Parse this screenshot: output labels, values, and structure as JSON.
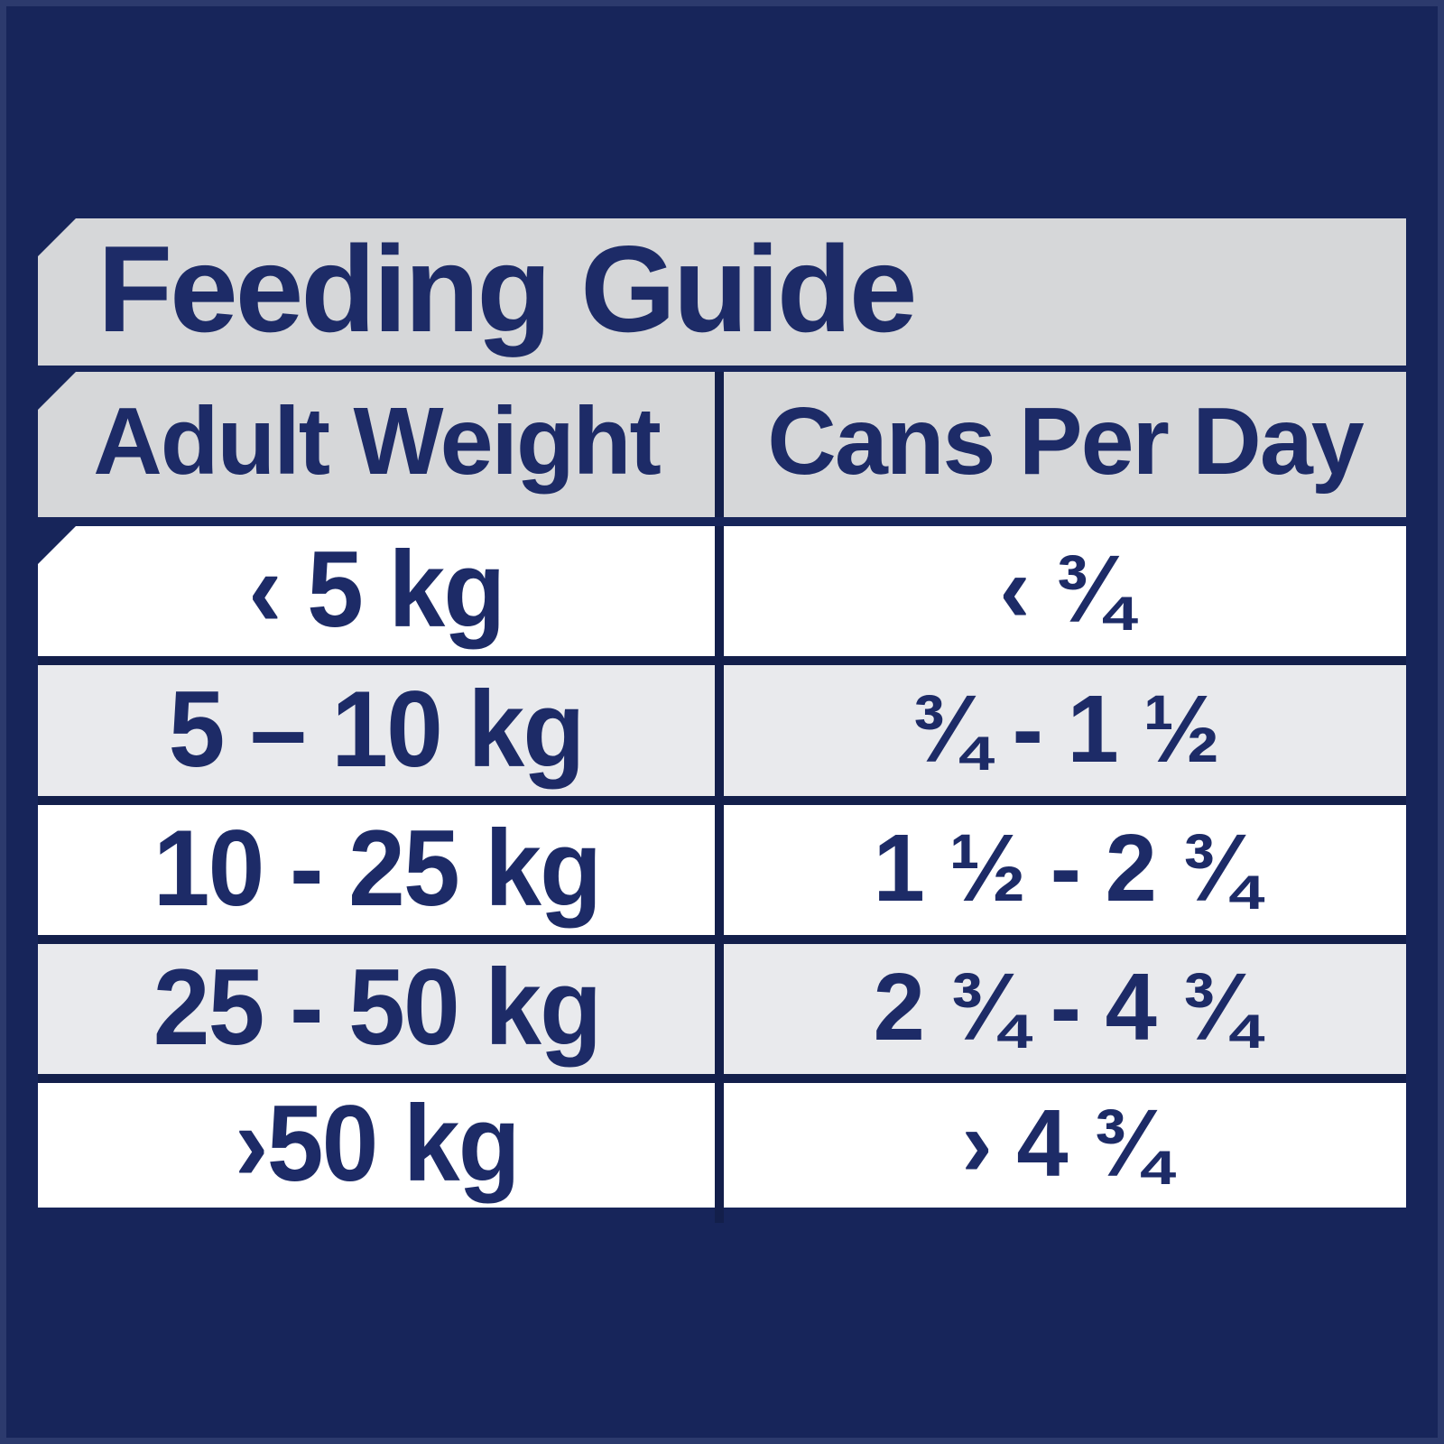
{
  "chart_data": {
    "type": "table",
    "title": "Feeding Guide",
    "columns": [
      "Adult Weight",
      "Cans Per Day"
    ],
    "rows": [
      [
        "‹ 5 kg",
        "‹ ¾"
      ],
      [
        "5 – 10 kg",
        "¾ - 1 ½"
      ],
      [
        "10 - 25 kg",
        "1 ½ - 2 ¾"
      ],
      [
        "25 - 50 kg",
        "2 ¾ - 4 ¾"
      ],
      [
        "›50 kg",
        "› 4 ¾"
      ]
    ],
    "layout_hints": {
      "row_shading": [
        "white",
        "gray",
        "white",
        "gray",
        "white"
      ],
      "title_alignment": "left",
      "cell_alignment": "center",
      "corner_style": "notched top-left on title, header and first row"
    }
  },
  "colors": {
    "background_navy": "#17255A",
    "grid_navy": "#131F4B",
    "header_gray": "#D6D7D9",
    "row_gray": "#E9EAED",
    "row_white": "#FFFFFF",
    "text_navy": "#1D2B67"
  }
}
